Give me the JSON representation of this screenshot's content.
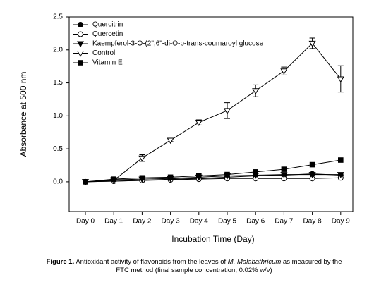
{
  "chart_data": {
    "type": "line",
    "x_label": "Incubation Time (Day)",
    "y_label": "Absorbance at 500 nm",
    "categories": [
      "Day 0",
      "Day 1",
      "Day 2",
      "Day 3",
      "Day 4",
      "Day 5",
      "Day 6",
      "Day 7",
      "Day 8",
      "Day 9"
    ],
    "ylim": [
      -0.45,
      2.5
    ],
    "yticks": [
      {
        "value": 0,
        "label": "0.0"
      },
      0.5,
      {
        "value": 1,
        "label": "1.0"
      },
      1.5,
      {
        "value": 2,
        "label": "2.0"
      },
      2.5
    ],
    "legend": "upper left",
    "series": [
      {
        "name": "Quercitrin",
        "color": "#000000",
        "marker": "circle",
        "marker_fill": "#000000",
        "values": [
          0,
          0.01,
          0.02,
          0.04,
          0.05,
          0.07,
          0.09,
          0.1,
          0.12,
          0.1
        ]
      },
      {
        "name": "Quercetin",
        "color": "#000000",
        "marker": "circle",
        "marker_fill": "#ffffff",
        "values": [
          0,
          0.01,
          0.02,
          0.03,
          0.04,
          0.05,
          0.05,
          0.05,
          0.05,
          0.06
        ]
      },
      {
        "name": "Kaempferol-3-O-(2\",6\"-di-O-p-trans-coumaroyl glucose",
        "color": "#000000",
        "marker": "triangle-down",
        "marker_fill": "#000000",
        "values": [
          0,
          0.03,
          0.04,
          0.05,
          0.07,
          0.09,
          0.1,
          0.11,
          0.11,
          0.11
        ]
      },
      {
        "name": "Control",
        "color": "#000000",
        "marker": "triangle-down",
        "marker_fill": "#ffffff",
        "values": [
          0,
          0.02,
          0.36,
          0.63,
          0.9,
          1.08,
          1.38,
          1.68,
          2.1,
          1.56
        ],
        "errors": [
          null,
          null,
          0.05,
          0.02,
          0.04,
          0.12,
          0.09,
          0.06,
          0.08,
          0.2
        ]
      },
      {
        "name": "Vitamin E",
        "color": "#000000",
        "marker": "square",
        "marker_fill": "#000000",
        "values": [
          0,
          0.04,
          0.06,
          0.07,
          0.09,
          0.11,
          0.15,
          0.19,
          0.26,
          0.33
        ]
      }
    ]
  },
  "caption": {
    "label": "Figure 1.",
    "parts": [
      "Antioxidant activity of flavonoids from the leaves of ",
      "M. Malabathricum",
      " as measured by the FTC method (final sample concentration, 0.02% w/v)"
    ]
  }
}
